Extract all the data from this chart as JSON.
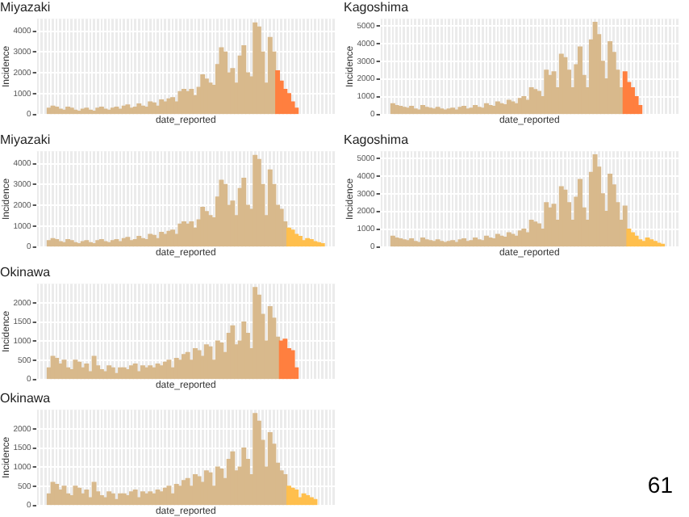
{
  "chart_data": [
    {
      "type": "bar",
      "title": "Miyazaki",
      "xlabel": "date_reported",
      "ylabel": "Incidence",
      "grid": true,
      "legend": false,
      "tick_labels": "y",
      "ylim": [
        0,
        4600
      ],
      "yticks": [
        0,
        1000,
        2000,
        3000,
        4000
      ],
      "categories": [
        null,
        null,
        null,
        null,
        null,
        null,
        null,
        null,
        null,
        null,
        null,
        null,
        null,
        null,
        null,
        null,
        null,
        null,
        null,
        null,
        null,
        null,
        null,
        null,
        null,
        null,
        null,
        null,
        null,
        null,
        null,
        null,
        null,
        null,
        null,
        null,
        null,
        null,
        null,
        null,
        null,
        null,
        null,
        null,
        null,
        null,
        null,
        null,
        null,
        null,
        null,
        null,
        null,
        null,
        null,
        null,
        null,
        null,
        null,
        null,
        null,
        null,
        null,
        null,
        null,
        null,
        null,
        null,
        null,
        null,
        null,
        null,
        null,
        null,
        null,
        null,
        null,
        null,
        null,
        null
      ],
      "series": [
        {
          "color": "#d8b98c",
          "values": [
            null,
            null,
            null,
            300,
            400,
            350,
            250,
            200,
            350,
            300,
            200,
            150,
            250,
            300,
            200,
            150,
            300,
            350,
            250,
            200,
            300,
            350,
            250,
            400,
            450,
            300,
            350,
            500,
            400,
            350,
            600,
            550,
            400,
            700,
            600,
            750,
            800,
            600,
            1100,
            1200,
            1100,
            1200,
            900,
            1300,
            1900,
            1700,
            1500,
            1400,
            2400,
            3200,
            3000,
            2000,
            2200,
            1500,
            2800,
            3300,
            2000,
            1800,
            4400,
            4200,
            3000,
            1500,
            3700,
            3000,
            null,
            null,
            null,
            null,
            null,
            null,
            null,
            null,
            null,
            null,
            null,
            null,
            null,
            null,
            null,
            null
          ]
        },
        {
          "color": "#ff7f3f",
          "values": [
            null,
            null,
            null,
            null,
            null,
            null,
            null,
            null,
            null,
            null,
            null,
            null,
            null,
            null,
            null,
            null,
            null,
            null,
            null,
            null,
            null,
            null,
            null,
            null,
            null,
            null,
            null,
            null,
            null,
            null,
            null,
            null,
            null,
            null,
            null,
            null,
            null,
            null,
            null,
            null,
            null,
            null,
            null,
            null,
            null,
            null,
            null,
            null,
            null,
            null,
            null,
            null,
            null,
            null,
            null,
            null,
            null,
            null,
            null,
            null,
            null,
            null,
            null,
            null,
            2100,
            1600,
            1200,
            1000,
            600,
            300,
            null,
            null,
            null,
            null,
            null,
            null,
            null,
            null,
            null,
            null
          ]
        }
      ]
    },
    {
      "type": "bar",
      "title": "Kagoshima",
      "xlabel": "date_reported",
      "ylabel": "Incidence",
      "grid": true,
      "legend": false,
      "tick_labels": "y",
      "ylim": [
        0,
        5400
      ],
      "yticks": [
        0,
        1000,
        2000,
        3000,
        4000,
        5000
      ],
      "categories": [
        null,
        null,
        null,
        null,
        null,
        null,
        null,
        null,
        null,
        null,
        null,
        null,
        null,
        null,
        null,
        null,
        null,
        null,
        null,
        null,
        null,
        null,
        null,
        null,
        null,
        null,
        null,
        null,
        null,
        null,
        null,
        null,
        null,
        null,
        null,
        null,
        null,
        null,
        null,
        null,
        null,
        null,
        null,
        null,
        null,
        null,
        null,
        null,
        null,
        null,
        null,
        null,
        null,
        null,
        null,
        null,
        null,
        null,
        null,
        null,
        null,
        null,
        null,
        null,
        null,
        null,
        null,
        null,
        null,
        null,
        null,
        null,
        null,
        null,
        null,
        null,
        null,
        null,
        null,
        null
      ],
      "series": [
        {
          "color": "#d8b98c",
          "values": [
            null,
            null,
            null,
            600,
            500,
            450,
            400,
            350,
            450,
            300,
            250,
            500,
            400,
            350,
            300,
            400,
            300,
            250,
            300,
            350,
            250,
            400,
            450,
            300,
            350,
            500,
            400,
            350,
            600,
            500,
            450,
            700,
            600,
            550,
            800,
            700,
            600,
            900,
            1000,
            800,
            1500,
            1400,
            1300,
            1000,
            2500,
            2200,
            2400,
            1500,
            3400,
            3200,
            2500,
            1500,
            2800,
            3800,
            2200,
            1500,
            4200,
            5200,
            4500,
            3000,
            2000,
            4100,
            3500,
            2500,
            1500,
            null,
            null,
            null,
            null,
            null,
            null,
            null,
            null,
            null,
            null,
            null,
            null,
            null,
            null,
            null
          ]
        },
        {
          "color": "#ff7f3f",
          "values": [
            null,
            null,
            null,
            null,
            null,
            null,
            null,
            null,
            null,
            null,
            null,
            null,
            null,
            null,
            null,
            null,
            null,
            null,
            null,
            null,
            null,
            null,
            null,
            null,
            null,
            null,
            null,
            null,
            null,
            null,
            null,
            null,
            null,
            null,
            null,
            null,
            null,
            null,
            null,
            null,
            null,
            null,
            null,
            null,
            null,
            null,
            null,
            null,
            null,
            null,
            null,
            null,
            null,
            null,
            null,
            null,
            null,
            null,
            null,
            null,
            null,
            null,
            null,
            null,
            null,
            2400,
            1800,
            1500,
            1000,
            500,
            null,
            null,
            null,
            null,
            null,
            null,
            null,
            null,
            null,
            null
          ]
        }
      ]
    },
    {
      "type": "bar",
      "title": "Miyazaki",
      "xlabel": "date_reported",
      "ylabel": "Incidence",
      "grid": true,
      "legend": false,
      "tick_labels": "y",
      "ylim": [
        0,
        4600
      ],
      "yticks": [
        0,
        1000,
        2000,
        3000,
        4000
      ],
      "categories": [
        null,
        null,
        null,
        null,
        null,
        null,
        null,
        null,
        null,
        null,
        null,
        null,
        null,
        null,
        null,
        null,
        null,
        null,
        null,
        null,
        null,
        null,
        null,
        null,
        null,
        null,
        null,
        null,
        null,
        null,
        null,
        null,
        null,
        null,
        null,
        null,
        null,
        null,
        null,
        null,
        null,
        null,
        null,
        null,
        null,
        null,
        null,
        null,
        null,
        null,
        null,
        null,
        null,
        null,
        null,
        null,
        null,
        null,
        null,
        null,
        null,
        null,
        null,
        null,
        null,
        null,
        null,
        null,
        null,
        null,
        null,
        null,
        null,
        null,
        null,
        null,
        null,
        null,
        null,
        null
      ],
      "series": [
        {
          "color": "#d8b98c",
          "values": [
            null,
            null,
            null,
            300,
            400,
            350,
            250,
            200,
            350,
            300,
            200,
            150,
            250,
            300,
            200,
            150,
            300,
            350,
            250,
            200,
            300,
            350,
            250,
            400,
            450,
            300,
            350,
            500,
            400,
            350,
            600,
            550,
            400,
            700,
            600,
            750,
            800,
            600,
            1100,
            1200,
            1100,
            1200,
            900,
            1300,
            1900,
            1700,
            1500,
            1400,
            2400,
            3200,
            3000,
            2000,
            2200,
            1500,
            2800,
            3300,
            2000,
            1800,
            4400,
            4200,
            3000,
            1500,
            3700,
            3000,
            2000,
            1800,
            1200,
            null,
            null,
            null,
            null,
            null,
            null,
            null,
            null,
            null,
            null,
            null,
            null,
            null
          ]
        },
        {
          "color": "#ffbf4d",
          "values": [
            null,
            null,
            null,
            null,
            null,
            null,
            null,
            null,
            null,
            null,
            null,
            null,
            null,
            null,
            null,
            null,
            null,
            null,
            null,
            null,
            null,
            null,
            null,
            null,
            null,
            null,
            null,
            null,
            null,
            null,
            null,
            null,
            null,
            null,
            null,
            null,
            null,
            null,
            null,
            null,
            null,
            null,
            null,
            null,
            null,
            null,
            null,
            null,
            null,
            null,
            null,
            null,
            null,
            null,
            null,
            null,
            null,
            null,
            null,
            null,
            null,
            null,
            null,
            null,
            null,
            null,
            null,
            900,
            800,
            600,
            500,
            300,
            400,
            350,
            250,
            200,
            150,
            null,
            null,
            null
          ]
        }
      ]
    },
    {
      "type": "bar",
      "title": "Kagoshima",
      "xlabel": "date_reported",
      "ylabel": "Incidence",
      "grid": true,
      "legend": false,
      "tick_labels": "y",
      "ylim": [
        0,
        5400
      ],
      "yticks": [
        0,
        1000,
        2000,
        3000,
        4000,
        5000
      ],
      "categories": [
        null,
        null,
        null,
        null,
        null,
        null,
        null,
        null,
        null,
        null,
        null,
        null,
        null,
        null,
        null,
        null,
        null,
        null,
        null,
        null,
        null,
        null,
        null,
        null,
        null,
        null,
        null,
        null,
        null,
        null,
        null,
        null,
        null,
        null,
        null,
        null,
        null,
        null,
        null,
        null,
        null,
        null,
        null,
        null,
        null,
        null,
        null,
        null,
        null,
        null,
        null,
        null,
        null,
        null,
        null,
        null,
        null,
        null,
        null,
        null,
        null,
        null,
        null,
        null,
        null,
        null,
        null,
        null,
        null,
        null,
        null,
        null,
        null,
        null,
        null,
        null,
        null,
        null,
        null,
        null
      ],
      "series": [
        {
          "color": "#d8b98c",
          "values": [
            null,
            null,
            null,
            600,
            500,
            450,
            400,
            350,
            450,
            300,
            250,
            500,
            400,
            350,
            300,
            400,
            300,
            250,
            300,
            350,
            250,
            400,
            450,
            300,
            350,
            500,
            400,
            350,
            600,
            500,
            450,
            700,
            600,
            550,
            800,
            700,
            600,
            900,
            1000,
            800,
            1500,
            1400,
            1300,
            1000,
            2500,
            2200,
            2400,
            1500,
            3400,
            3200,
            2500,
            1500,
            2800,
            3800,
            2200,
            1500,
            4200,
            5200,
            4500,
            3000,
            2000,
            4100,
            3500,
            2500,
            1500,
            2300,
            null,
            null,
            null,
            null,
            null,
            null,
            null,
            null,
            null,
            null,
            null,
            null,
            null,
            null
          ]
        },
        {
          "color": "#ffbf4d",
          "values": [
            null,
            null,
            null,
            null,
            null,
            null,
            null,
            null,
            null,
            null,
            null,
            null,
            null,
            null,
            null,
            null,
            null,
            null,
            null,
            null,
            null,
            null,
            null,
            null,
            null,
            null,
            null,
            null,
            null,
            null,
            null,
            null,
            null,
            null,
            null,
            null,
            null,
            null,
            null,
            null,
            null,
            null,
            null,
            null,
            null,
            null,
            null,
            null,
            null,
            null,
            null,
            null,
            null,
            null,
            null,
            null,
            null,
            null,
            null,
            null,
            null,
            null,
            null,
            null,
            null,
            null,
            1000,
            800,
            600,
            400,
            300,
            500,
            400,
            300,
            200,
            150,
            null,
            null,
            null,
            null
          ]
        }
      ]
    },
    {
      "type": "bar",
      "title": "Okinawa",
      "xlabel": "date_reported",
      "ylabel": "Incidence",
      "grid": true,
      "legend": false,
      "tick_labels": "y",
      "ylim": [
        0,
        2500
      ],
      "yticks": [
        0,
        500,
        1000,
        1500,
        2000
      ],
      "categories": [
        null,
        null,
        null,
        null,
        null,
        null,
        null,
        null,
        null,
        null,
        null,
        null,
        null,
        null,
        null,
        null,
        null,
        null,
        null,
        null,
        null,
        null,
        null,
        null,
        null,
        null,
        null,
        null,
        null,
        null,
        null,
        null,
        null,
        null,
        null,
        null,
        null,
        null,
        null,
        null,
        null,
        null,
        null,
        null,
        null,
        null,
        null,
        null,
        null,
        null,
        null,
        null,
        null,
        null,
        null,
        null,
        null,
        null,
        null,
        null,
        null,
        null,
        null,
        null,
        null,
        null,
        null,
        null,
        null,
        null,
        null,
        null,
        null,
        null,
        null,
        null,
        null,
        null,
        null,
        null
      ],
      "series": [
        {
          "color": "#d8b98c",
          "values": [
            null,
            null,
            null,
            300,
            600,
            550,
            400,
            500,
            300,
            250,
            500,
            450,
            300,
            400,
            200,
            600,
            350,
            250,
            200,
            350,
            300,
            150,
            300,
            300,
            250,
            350,
            400,
            200,
            350,
            300,
            350,
            300,
            400,
            350,
            450,
            500,
            300,
            550,
            500,
            650,
            700,
            500,
            800,
            750,
            600,
            900,
            850,
            500,
            1000,
            950,
            700,
            1200,
            1400,
            900,
            1000,
            1500,
            1200,
            800,
            2400,
            2200,
            1700,
            1000,
            1900,
            1600,
            1100,
            null,
            null,
            null,
            null,
            null,
            null,
            null,
            null,
            null,
            null,
            null,
            null,
            null,
            null,
            null
          ]
        },
        {
          "color": "#ff7f3f",
          "values": [
            null,
            null,
            null,
            null,
            null,
            null,
            null,
            null,
            null,
            null,
            null,
            null,
            null,
            null,
            null,
            null,
            null,
            null,
            null,
            null,
            null,
            null,
            null,
            null,
            null,
            null,
            null,
            null,
            null,
            null,
            null,
            null,
            null,
            null,
            null,
            null,
            null,
            null,
            null,
            null,
            null,
            null,
            null,
            null,
            null,
            null,
            null,
            null,
            null,
            null,
            null,
            null,
            null,
            null,
            null,
            null,
            null,
            null,
            null,
            null,
            null,
            null,
            null,
            null,
            null,
            1000,
            1050,
            800,
            750,
            300,
            null,
            null,
            null,
            null,
            null,
            null,
            null,
            null,
            null,
            null
          ]
        }
      ]
    },
    {
      "type": "bar",
      "title": "Okinawa",
      "xlabel": "date_reported",
      "ylabel": "Incidence",
      "grid": true,
      "legend": false,
      "tick_labels": "y",
      "ylim": [
        0,
        2500
      ],
      "yticks": [
        0,
        500,
        1000,
        1500,
        2000
      ],
      "annotations": [
        "61"
      ],
      "categories": [
        null,
        null,
        null,
        null,
        null,
        null,
        null,
        null,
        null,
        null,
        null,
        null,
        null,
        null,
        null,
        null,
        null,
        null,
        null,
        null,
        null,
        null,
        null,
        null,
        null,
        null,
        null,
        null,
        null,
        null,
        null,
        null,
        null,
        null,
        null,
        null,
        null,
        null,
        null,
        null,
        null,
        null,
        null,
        null,
        null,
        null,
        null,
        null,
        null,
        null,
        null,
        null,
        null,
        null,
        null,
        null,
        null,
        null,
        null,
        null,
        null,
        null,
        null,
        null,
        null,
        null,
        null,
        null,
        null,
        null,
        null,
        null,
        null,
        null,
        null,
        null,
        null,
        null,
        null,
        null
      ],
      "series": [
        {
          "color": "#d8b98c",
          "values": [
            null,
            null,
            null,
            300,
            600,
            550,
            400,
            500,
            300,
            250,
            500,
            450,
            300,
            400,
            200,
            600,
            350,
            250,
            200,
            350,
            300,
            150,
            300,
            300,
            250,
            350,
            400,
            200,
            350,
            300,
            350,
            300,
            400,
            350,
            450,
            500,
            300,
            550,
            500,
            650,
            700,
            500,
            800,
            750,
            600,
            900,
            850,
            500,
            1000,
            950,
            700,
            1200,
            1400,
            900,
            1000,
            1500,
            1200,
            800,
            2400,
            2200,
            1700,
            1000,
            1900,
            1600,
            1100,
            900,
            800,
            null,
            null,
            null,
            null,
            null,
            null,
            null,
            null,
            null,
            null,
            null,
            null,
            null
          ]
        },
        {
          "color": "#ffbf4d",
          "values": [
            null,
            null,
            null,
            null,
            null,
            null,
            null,
            null,
            null,
            null,
            null,
            null,
            null,
            null,
            null,
            null,
            null,
            null,
            null,
            null,
            null,
            null,
            null,
            null,
            null,
            null,
            null,
            null,
            null,
            null,
            null,
            null,
            null,
            null,
            null,
            null,
            null,
            null,
            null,
            null,
            null,
            null,
            null,
            null,
            null,
            null,
            null,
            null,
            null,
            null,
            null,
            null,
            null,
            null,
            null,
            null,
            null,
            null,
            null,
            null,
            null,
            null,
            null,
            null,
            null,
            null,
            null,
            500,
            450,
            400,
            200,
            300,
            250,
            200,
            150,
            null,
            null,
            null,
            null,
            null
          ]
        }
      ]
    }
  ]
}
